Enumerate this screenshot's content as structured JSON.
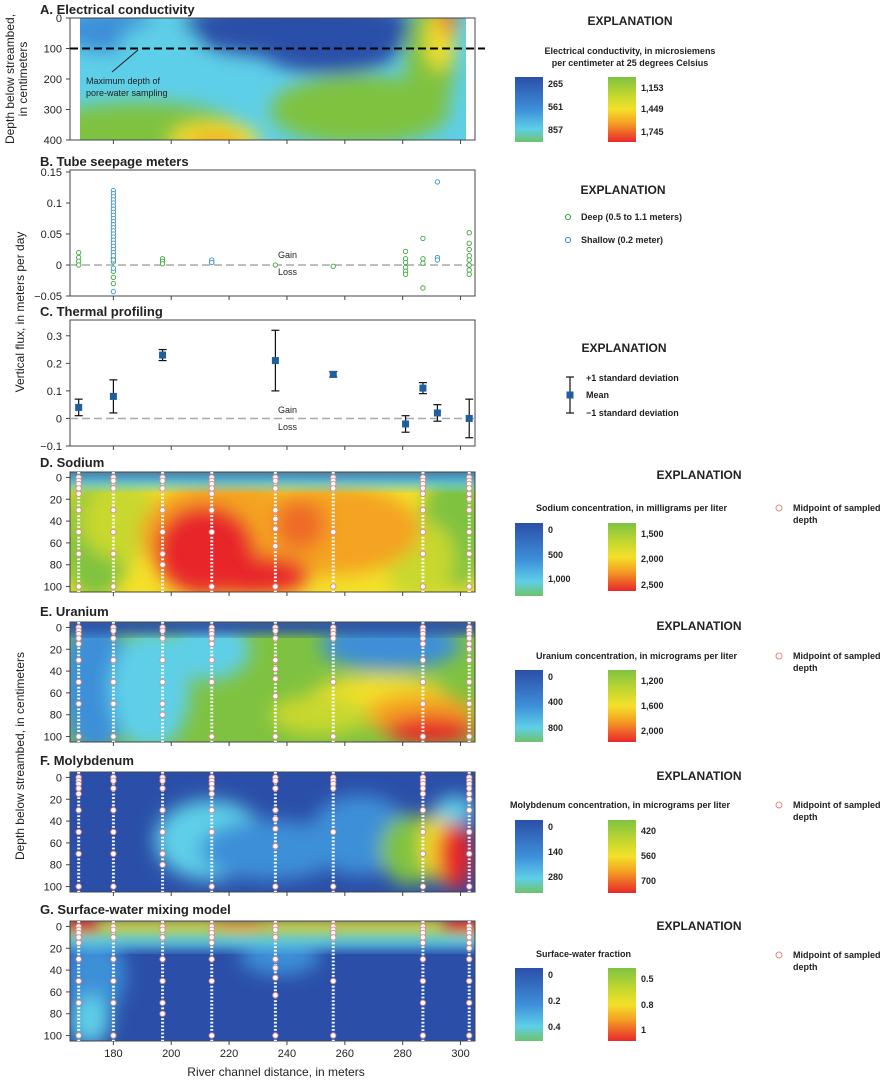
{
  "chart_data": [
    {
      "type": "heatmap",
      "panel": "A",
      "title": "A. Electrical conductivity",
      "ylabel": "Depth below streambed, in centimeters",
      "ylim": [
        400,
        0
      ],
      "yticks": [
        0,
        100,
        200,
        300,
        400
      ],
      "xlim": [
        165,
        305
      ],
      "annotation": "Maximum depth of pore-water sampling",
      "annotation_lines": [
        "Maximum depth of",
        "pore-water sampling"
      ],
      "reference_depth": 100,
      "legend": {
        "title": "EXPLANATION",
        "subtitle": [
          "Electrical conductivity, in microsiemens",
          "per centimeter at 25 degrees Celsius"
        ],
        "labels_left": [
          "265",
          "561",
          "857"
        ],
        "labels_right": [
          "1,153",
          "1,449",
          "1,745"
        ]
      }
    },
    {
      "type": "scatter",
      "panel": "B",
      "title": "B. Tube seepage meters",
      "ylim": [
        -0.05,
        0.15
      ],
      "yticks": [
        "0.15",
        "0.1",
        "0.05",
        "0",
        "-0.05"
      ],
      "xlim": [
        165,
        305
      ],
      "gain_label": "Gain",
      "loss_label": "Loss",
      "series": [
        {
          "name": "Deep (0.5 to 1.1 meters)",
          "color": "#3da53d",
          "x": [
            168,
            168,
            168,
            168,
            180,
            180,
            180,
            180,
            180,
            197,
            197,
            197,
            214,
            236,
            256,
            281,
            281,
            281,
            281,
            281,
            281,
            287,
            287,
            287,
            287,
            303,
            303,
            303,
            303,
            303,
            303,
            303,
            303
          ],
          "y": [
            0.02,
            0.012,
            0.006,
            0.0,
            0.01,
            0.005,
            -0.01,
            -0.02,
            -0.03,
            0.01,
            0.006,
            0.002,
            0.004,
            0.0,
            -0.002,
            0.022,
            0.01,
            0.004,
            -0.004,
            -0.01,
            -0.015,
            0.043,
            0.01,
            0.003,
            -0.037,
            0.052,
            0.035,
            0.025,
            0.015,
            0.008,
            0.0,
            -0.008,
            -0.015
          ]
        },
        {
          "name": "Shallow (0.2 meter)",
          "color": "#3d8fcf",
          "x": [
            180,
            180,
            180,
            180,
            180,
            180,
            180,
            180,
            180,
            180,
            180,
            180,
            180,
            180,
            180,
            180,
            180,
            180,
            180,
            180,
            180,
            180,
            180,
            180,
            180,
            214,
            214,
            292,
            292,
            292
          ],
          "y": [
            0.12,
            0.115,
            0.11,
            0.105,
            0.1,
            0.095,
            0.09,
            0.085,
            0.08,
            0.075,
            0.07,
            0.065,
            0.06,
            0.055,
            0.05,
            0.045,
            0.04,
            0.035,
            0.03,
            0.025,
            0.02,
            0.015,
            0.008,
            -0.005,
            -0.043,
            0.008,
            0.004,
            0.134,
            0.012,
            0.008
          ]
        }
      ],
      "legend": {
        "title": "EXPLANATION"
      }
    },
    {
      "type": "scatter",
      "panel": "C",
      "title": "C. Thermal profiling",
      "ylabel": "Vertical flux, in meters per day",
      "ylim": [
        -0.1,
        0.35
      ],
      "yticks": [
        "0.3",
        "0.2",
        "0.1",
        "0",
        "-0.1"
      ],
      "xlim": [
        165,
        305
      ],
      "gain_label": "Gain",
      "loss_label": "Loss",
      "series": [
        {
          "name": "Mean",
          "color": "#1f5f9e",
          "x": [
            168,
            180,
            197,
            236,
            256,
            281,
            287,
            292,
            303
          ],
          "y": [
            0.04,
            0.08,
            0.23,
            0.21,
            0.16,
            -0.02,
            0.11,
            0.02,
            0.0
          ],
          "err": [
            0.03,
            0.06,
            0.02,
            0.11,
            0.01,
            0.03,
            0.02,
            0.03,
            0.07
          ]
        }
      ],
      "legend": {
        "title": "EXPLANATION",
        "plus": "+1 standard deviation",
        "mean": "Mean",
        "minus": "−1 standard deviation"
      }
    },
    {
      "type": "heatmap",
      "panel": "D",
      "title": "D. Sodium",
      "ylim": [
        105,
        -5
      ],
      "yticks": [
        "0",
        "20",
        "40",
        "60",
        "80",
        "100"
      ],
      "xlim": [
        165,
        305
      ],
      "legend": {
        "title": "EXPLANATION",
        "subtitle": [
          "Sodium concentration, in milligrams per liter"
        ],
        "labels_left": [
          "0",
          "500",
          "1,000"
        ],
        "labels_right": [
          "1,500",
          "2,000",
          "2,500"
        ],
        "marker_label": [
          "Midpoint of sampled",
          "depth"
        ]
      }
    },
    {
      "type": "heatmap",
      "panel": "E",
      "title": "E. Uranium",
      "ylim": [
        105,
        -5
      ],
      "yticks": [
        "0",
        "20",
        "40",
        "60",
        "80",
        "100"
      ],
      "xlim": [
        165,
        305
      ],
      "legend": {
        "title": "EXPLANATION",
        "subtitle": [
          "Uranium concentration, in micrograms per liter"
        ],
        "labels_left": [
          "0",
          "400",
          "800"
        ],
        "labels_right": [
          "1,200",
          "1,600",
          "2,000"
        ],
        "marker_label": [
          "Midpoint of sampled",
          "depth"
        ]
      }
    },
    {
      "type": "heatmap",
      "panel": "F",
      "title": "F. Molybdenum",
      "ylim": [
        105,
        -5
      ],
      "yticks": [
        "0",
        "20",
        "40",
        "60",
        "80",
        "100"
      ],
      "xlim": [
        165,
        305
      ],
      "legend": {
        "title": "EXPLANATION",
        "subtitle": [
          "Molybdenum concentration, in micrograms per liter"
        ],
        "labels_left": [
          "0",
          "140",
          "280"
        ],
        "labels_right": [
          "420",
          "560",
          "700"
        ],
        "marker_label": [
          "Midpoint of sampled",
          "depth"
        ]
      }
    },
    {
      "type": "heatmap",
      "panel": "G",
      "title": "G. Surface-water mixing model",
      "ylim": [
        105,
        -5
      ],
      "yticks": [
        "0",
        "20",
        "40",
        "60",
        "80",
        "100"
      ],
      "xlim": [
        165,
        305
      ],
      "legend": {
        "title": "EXPLANATION",
        "subtitle": [
          "Surface-water fraction"
        ],
        "labels_left": [
          "0",
          "0.2",
          "0.4"
        ],
        "labels_right": [
          "0.5",
          "0.8",
          "1"
        ],
        "marker_label": [
          "Midpoint of sampled",
          "depth"
        ]
      }
    }
  ],
  "shared": {
    "ylabel_lower": "Depth below streambed, in centimeters",
    "xlabel": "River channel distance, in meters",
    "xticks": [
      "180",
      "200",
      "220",
      "240",
      "260",
      "280",
      "300"
    ],
    "sample_points": {
      "x": [
        168,
        180,
        197,
        214,
        236,
        256,
        287,
        303
      ],
      "depths": [
        [
          0,
          3,
          6,
          10,
          15,
          30,
          50,
          70,
          100
        ],
        [
          0,
          3,
          10,
          30,
          50,
          70,
          100
        ],
        [
          0,
          3,
          10,
          30,
          50,
          70,
          80
        ],
        [
          0,
          3,
          6,
          10,
          15,
          30,
          50,
          100
        ],
        [
          0,
          3,
          10,
          30,
          38,
          47,
          63,
          100
        ],
        [
          0,
          3,
          6,
          10,
          50,
          100
        ],
        [
          0,
          3,
          6,
          10,
          15,
          30,
          50,
          70,
          100
        ],
        [
          0,
          3,
          6,
          10,
          15,
          20,
          30,
          50,
          70,
          100
        ]
      ]
    },
    "colors": {
      "blue_dark": "#2b4fa8",
      "blue_mid": "#3d8fd8",
      "cyan": "#5ecfe8",
      "green": "#7fc241",
      "yellow": "#f4e02a",
      "orange": "#f4a323",
      "red": "#e8282a",
      "marker_fill": "#ffffff",
      "marker_edge": "#d98b8b"
    }
  }
}
